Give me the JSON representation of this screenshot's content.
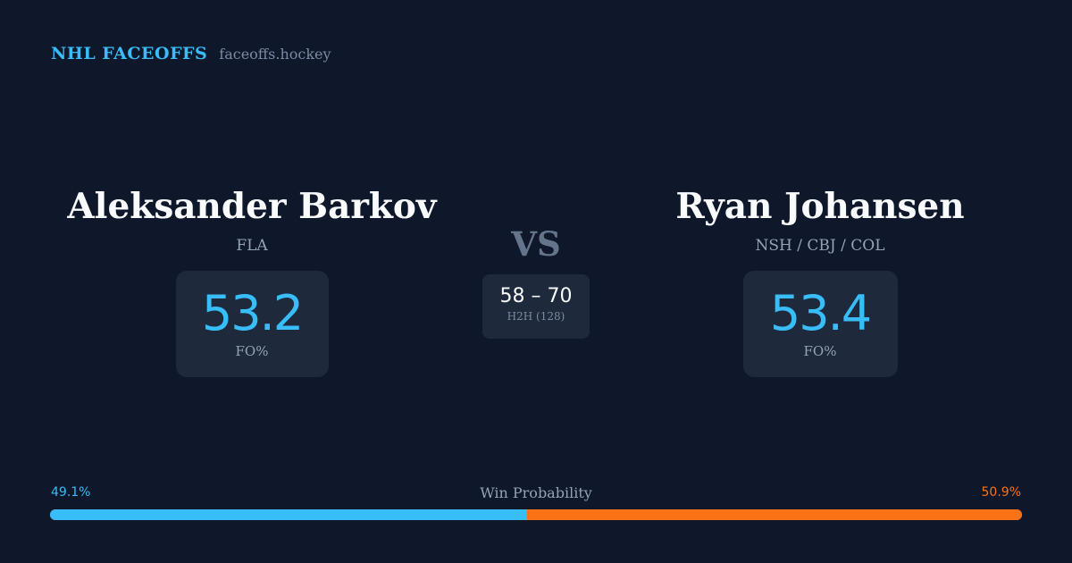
{
  "header": {
    "brand": "NHL FACEOFFS",
    "domain": "faceoffs.hockey"
  },
  "players": [
    {
      "name": "Aleksander Barkov",
      "teams": "FLA",
      "fo_pct": "53.2",
      "fo_label": "FO%"
    },
    {
      "name": "Ryan Johansen",
      "teams": "NSH / CBJ / COL",
      "fo_pct": "53.4",
      "fo_label": "FO%"
    }
  ],
  "vs_label": "VS",
  "h2h": {
    "score": "58 – 70",
    "label": "H2H (128)"
  },
  "win_probability": {
    "title": "Win Probability",
    "left_label": "49.1%",
    "right_label": "50.9%",
    "left_value": 49.1,
    "right_value": 50.9
  },
  "colors": {
    "background": "#0f172a",
    "accent_left": "#38bdf8",
    "accent_right": "#f97316",
    "card": "#1e293b"
  }
}
